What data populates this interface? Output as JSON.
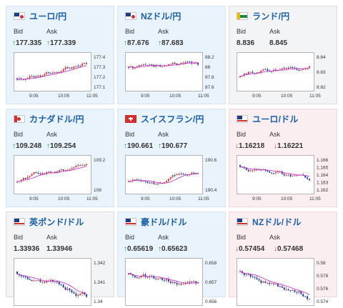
{
  "cards": [
    {
      "pair": "ユーロ/円",
      "bid_label": "Bid",
      "ask_label": "Ask",
      "bid": "177.335",
      "ask": "177.339",
      "dir": "up",
      "flag": "eu",
      "chart": {
        "yticks": [
          "177.4",
          "177.3",
          "177.2",
          "177.1"
        ],
        "xticks": [
          "9:05",
          "10:05",
          "11:05"
        ]
      }
    },
    {
      "pair": "NZドル/円",
      "bid_label": "Bid",
      "ask_label": "Ask",
      "bid": "87.676",
      "ask": "87.683",
      "dir": "up",
      "flag": "nz",
      "chart": {
        "yticks": [
          "88.2",
          "88",
          "87.8",
          "87.6"
        ],
        "xticks": [
          "9:05",
          "10:05",
          "11:05"
        ]
      }
    },
    {
      "pair": "ランド/円",
      "bid_label": "Bid",
      "ask_label": "Ask",
      "bid": "8.836",
      "ask": "8.845",
      "dir": "none",
      "flag": "za",
      "chart": {
        "yticks": [
          "8.84",
          "8.83",
          "8.82"
        ],
        "xticks": [
          "9:05",
          "10:05",
          "11:05"
        ]
      }
    },
    {
      "pair": "カナダドル/円",
      "bid_label": "Bid",
      "ask_label": "Ask",
      "bid": "109.248",
      "ask": "109.254",
      "dir": "up",
      "flag": "ca",
      "chart": {
        "yticks": [
          "109.2",
          "109"
        ],
        "xticks": [
          "9:05",
          "10:05",
          "11:05"
        ]
      }
    },
    {
      "pair": "スイスフラン/円",
      "bid_label": "Bid",
      "ask_label": "Ask",
      "bid": "190.661",
      "ask": "190.677",
      "dir": "up",
      "flag": "ch",
      "chart": {
        "yticks": [
          "190.6",
          "190.4"
        ],
        "xticks": [
          "9:05",
          "10:05",
          "11:05"
        ]
      }
    },
    {
      "pair": "ユーロ/ドル",
      "bid_label": "Bid",
      "ask_label": "Ask",
      "bid": "1.16218",
      "ask": "1.16221",
      "dir": "down",
      "flag": "us",
      "chart": {
        "yticks": [
          "1.166",
          "1.165",
          "1.164",
          "1.163",
          "1.162"
        ],
        "xticks": [
          "9:05",
          "10:05",
          "11:05"
        ]
      }
    },
    {
      "pair": "英ポンド/ドル",
      "bid_label": "Bid",
      "ask_label": "Ask",
      "bid": "1.33936",
      "ask": "1.33946",
      "dir": "none",
      "flag": "us",
      "chart": {
        "yticks": [
          "1.342",
          "1.341",
          "1.34"
        ],
        "xticks": []
      }
    },
    {
      "pair": "豪ドル/ドル",
      "bid_label": "Bid",
      "ask_label": "Ask",
      "bid": "0.65619",
      "ask": "0.65623",
      "dir": "up",
      "flag": "us",
      "chart": {
        "yticks": [
          "0.658",
          "0.657",
          "0.656"
        ],
        "xticks": []
      }
    },
    {
      "pair": "NZドル/ドル",
      "bid_label": "Bid",
      "ask_label": "Ask",
      "bid": "0.57454",
      "ask": "0.57468",
      "dir": "down",
      "flag": "us",
      "chart": {
        "yticks": [
          "0.58",
          "0.578",
          "0.576",
          "0.574"
        ],
        "xticks": []
      }
    }
  ],
  "icons": {
    "up": "up-arrow-icon",
    "down": "down-arrow-icon"
  },
  "colors": {
    "bull": "#d83a3a",
    "bear": "#1f3fa6",
    "ma": "#c63cc6",
    "up_arrow": "#1a9a4a",
    "down_arrow": "#d23a3a"
  }
}
